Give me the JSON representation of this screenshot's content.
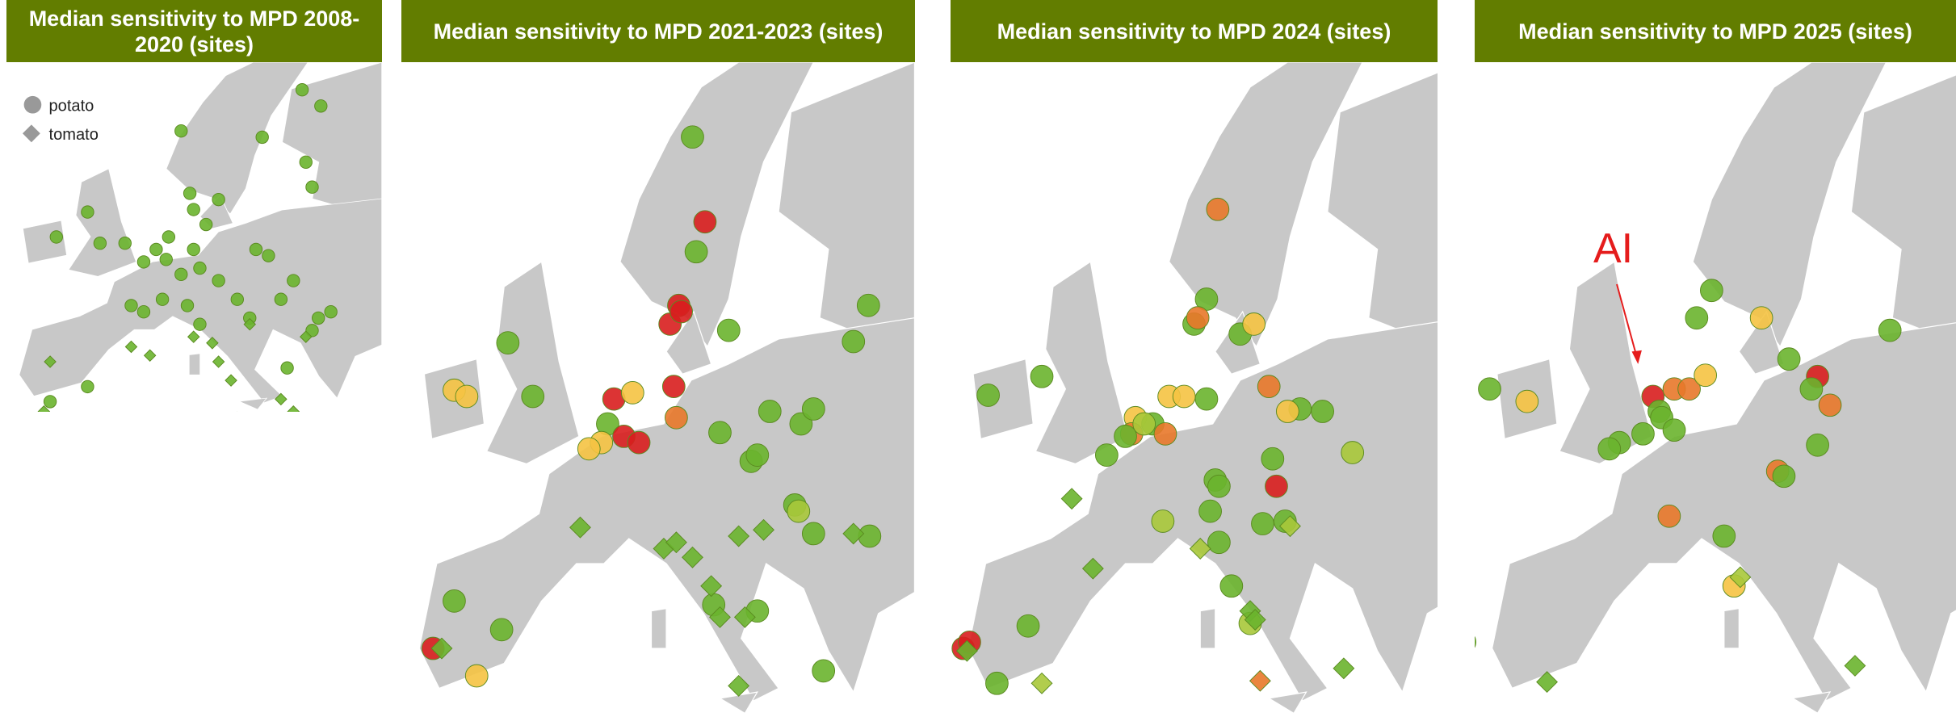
{
  "panels": [
    {
      "title": "Median sensitivity to MPD 2008-2020 (sites)"
    },
    {
      "title": "Median sensitivity to MPD 2021-2023 (sites)"
    },
    {
      "title": "Median sensitivity to MPD 2024 (sites)"
    },
    {
      "title": "Median sensitivity to MPD 2025 (sites)"
    }
  ],
  "legend": {
    "items": [
      "potato",
      "tomato"
    ]
  },
  "annotation": "AI"
}
